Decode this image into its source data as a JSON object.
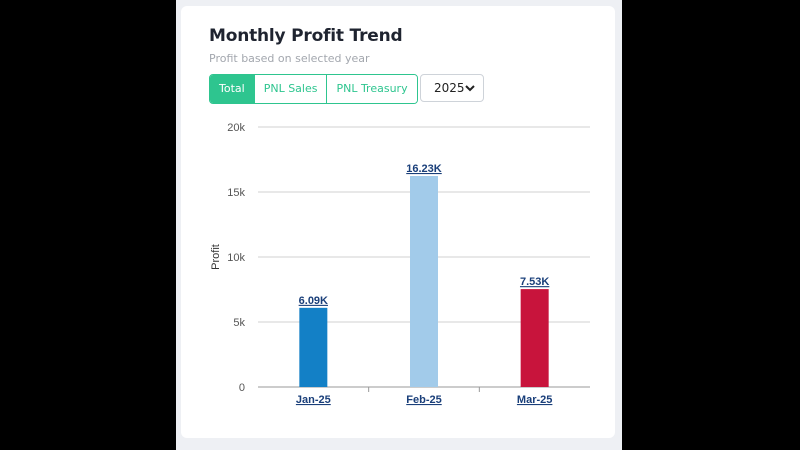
{
  "card": {
    "title": "Monthly Profit Trend",
    "subtitle": "Profit based on selected year"
  },
  "tabs": [
    {
      "label": "Total",
      "active": true
    },
    {
      "label": "PNL Sales",
      "active": false
    },
    {
      "label": "PNL Treasury",
      "active": false
    }
  ],
  "year_select": {
    "value": "2025",
    "icon": "chevron-down-icon"
  },
  "colors": {
    "accent": "#2ec58f",
    "bar_colors": [
      "#1380c6",
      "#a2cbea",
      "#c8143c"
    ]
  },
  "chart_data": {
    "type": "bar",
    "categories": [
      "Jan-25",
      "Feb-25",
      "Mar-25"
    ],
    "values": [
      6090,
      16230,
      7530
    ],
    "data_labels": [
      "6.09K",
      "16.23K",
      "7.53K"
    ],
    "ylabel": "Profit",
    "ylim": [
      0,
      20000
    ],
    "yticks": [
      0,
      5000,
      10000,
      15000,
      20000
    ],
    "ytick_labels": [
      "0",
      "5k",
      "10k",
      "15k",
      "20k"
    ],
    "grid": true
  }
}
